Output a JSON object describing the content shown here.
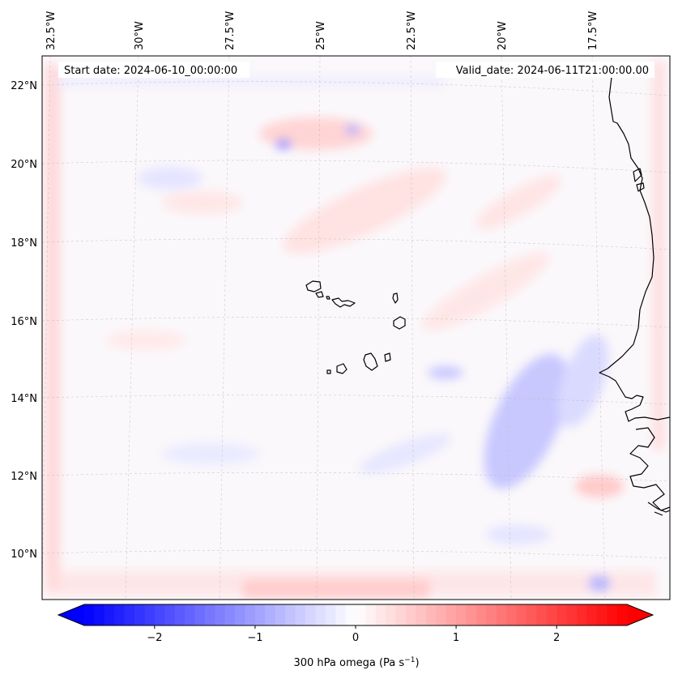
{
  "map": {
    "start_date": "Start date: 2024-06-10_00:00:00",
    "valid_date": "Valid_date: 2024-06-11T21:00:00.00",
    "lon_labels": [
      "32.5°W",
      "30°W",
      "27.5°W",
      "25°W",
      "22.5°W",
      "20°W",
      "17.5°W"
    ],
    "lat_labels": [
      "22°N",
      "20°N",
      "18°N",
      "16°N",
      "14°N",
      "12°N",
      "10°N"
    ],
    "field_colors": {
      "negative": "#0000ff",
      "neutral": "#ffffff",
      "positive": "#ff0000"
    }
  },
  "colorbar": {
    "label": "300 hPa omega (Pa s",
    "label_sup": "−1",
    "label_end": ")",
    "min": -2.7,
    "max": 2.7,
    "extend": "both",
    "ticks": [
      -2,
      -1,
      0,
      1,
      2
    ],
    "tick_labels": [
      "−2",
      "−1",
      "0",
      "1",
      "2"
    ]
  }
}
